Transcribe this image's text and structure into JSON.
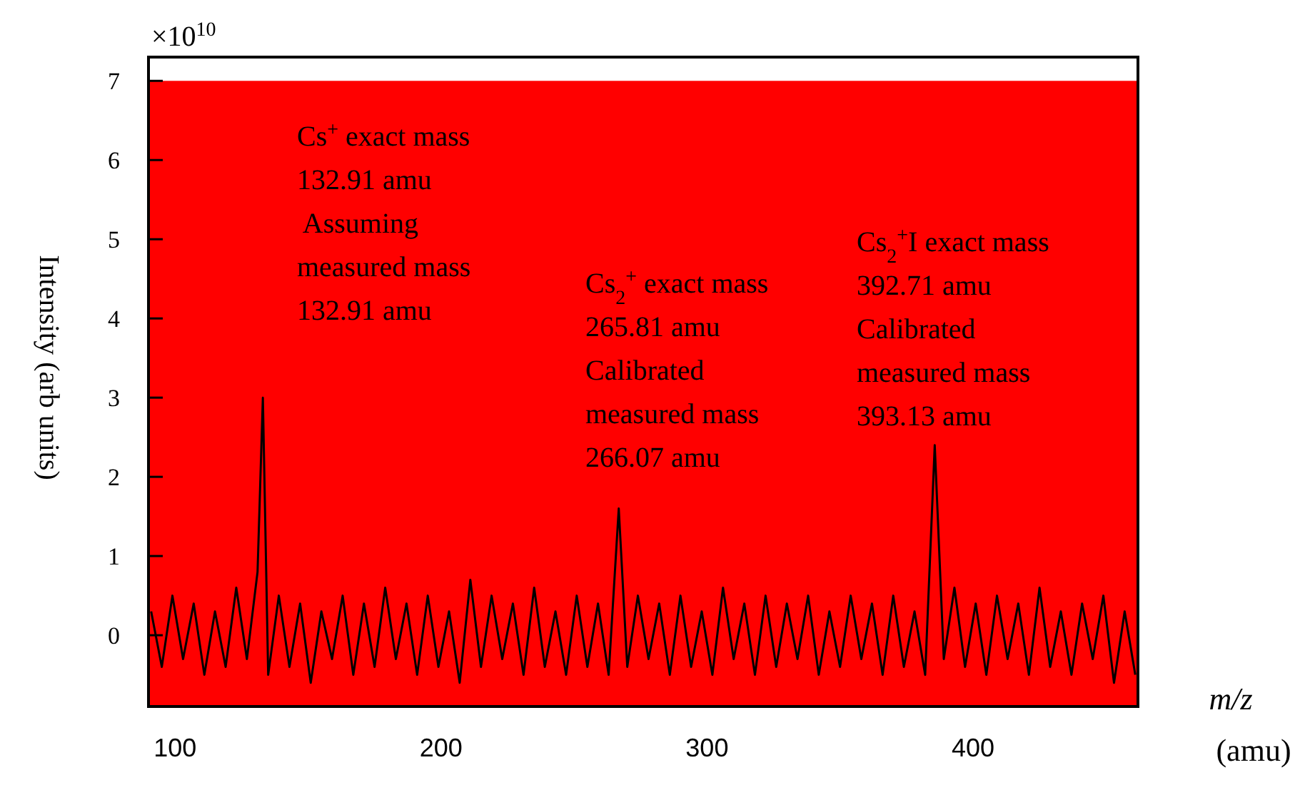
{
  "chart_data": {
    "type": "line",
    "xlabel": "m/z\n(amu)",
    "ylabel": "Intensity (arb units)",
    "xlim": [
      90,
      462
    ],
    "ylim": [
      -0.9,
      7.3
    ],
    "xticks": [
      100,
      200,
      300,
      400
    ],
    "yticks": [
      0,
      1,
      2,
      3,
      4,
      5,
      6,
      7
    ],
    "grid": false,
    "marker": "none",
    "line_style": "solid",
    "annotations": [
      "×10$^{10}$",
      "Cs$^{+}$ exact mass\n132.91 amu\n Assuming\nmeasured mass\n132.91 amu",
      "Cs$_{2}$$^{+}$ exact mass\n265.81 amu\nCalibrated\nmeasured mass\n266.07 amu",
      "Cs$_{2}$$^{+}$I exact mass\n392.71 amu\nCalibrated\nmeasured mass\n393.13 amu"
    ],
    "series": [
      {
        "color": "#000000",
        "x": [
          91,
          95,
          99,
          103,
          107,
          111,
          115,
          119,
          123,
          127,
          131,
          133,
          135,
          139,
          143,
          147,
          151,
          155,
          159,
          163,
          167,
          171,
          175,
          179,
          183,
          187,
          191,
          195,
          199,
          203,
          207,
          211,
          215,
          219,
          223,
          227,
          231,
          235,
          239,
          243,
          247,
          251,
          255,
          259,
          263,
          266.8,
          270,
          274,
          278,
          282,
          286,
          290,
          294,
          298,
          302,
          306,
          310,
          314,
          318,
          322,
          326,
          330,
          334,
          338,
          342,
          346,
          350,
          354,
          358,
          362,
          366,
          370,
          374,
          378,
          382,
          385.6,
          389,
          393,
          397,
          401,
          405,
          409,
          413,
          417,
          421,
          425,
          429,
          433,
          437,
          441,
          445,
          449,
          453,
          457,
          461
        ],
        "values": [
          0.3,
          -0.4,
          0.5,
          -0.3,
          0.4,
          -0.5,
          0.3,
          -0.4,
          0.6,
          -0.3,
          0.8,
          3.0,
          -0.5,
          0.5,
          -0.4,
          0.4,
          -0.6,
          0.3,
          -0.3,
          0.5,
          -0.5,
          0.4,
          -0.4,
          0.6,
          -0.3,
          0.4,
          -0.5,
          0.5,
          -0.4,
          0.3,
          -0.6,
          0.7,
          -0.4,
          0.5,
          -0.3,
          0.4,
          -0.5,
          0.6,
          -0.4,
          0.3,
          -0.5,
          0.5,
          -0.4,
          0.4,
          -0.5,
          1.6,
          -0.4,
          0.5,
          -0.3,
          0.4,
          -0.5,
          0.5,
          -0.4,
          0.3,
          -0.5,
          0.6,
          -0.3,
          0.4,
          -0.5,
          0.5,
          -0.4,
          0.4,
          -0.3,
          0.5,
          -0.5,
          0.3,
          -0.4,
          0.5,
          -0.3,
          0.4,
          -0.5,
          0.5,
          -0.4,
          0.3,
          -0.5,
          2.4,
          -0.3,
          0.6,
          -0.4,
          0.4,
          -0.5,
          0.5,
          -0.3,
          0.4,
          -0.5,
          0.6,
          -0.4,
          0.3,
          -0.5,
          0.4,
          -0.3,
          0.5,
          -0.6,
          0.3,
          -0.5
        ]
      }
    ]
  }
}
